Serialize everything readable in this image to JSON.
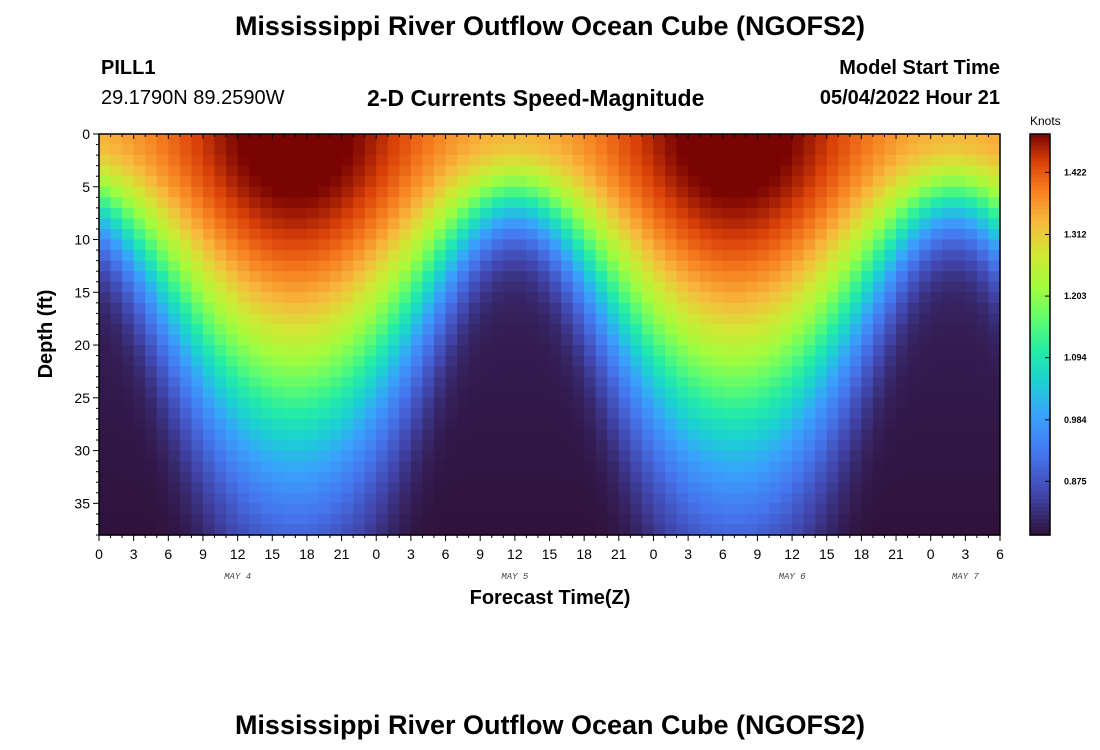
{
  "header": {
    "title": "Mississippi River Outflow Ocean Cube (NGOFS2)",
    "station_name": "PILL1",
    "station_coords": "29.1790N  89.2590W",
    "subtitle": "2-D Currents Speed-Magnitude",
    "model_start_label": "Model Start Time",
    "model_start_value": "05/04/2022 Hour 21"
  },
  "footer": {
    "title": "Mississippi River Outflow Ocean Cube (NGOFS2)"
  },
  "chart_data": {
    "type": "heatmap",
    "xlabel": "Forecast Time(Z)",
    "ylabel": "Depth (ft)",
    "x_tick_labels": [
      "0",
      "3",
      "6",
      "9",
      "12",
      "15",
      "18",
      "21",
      "0",
      "3",
      "6",
      "9",
      "12",
      "15",
      "18",
      "21",
      "0",
      "3",
      "6",
      "9",
      "12",
      "15",
      "18",
      "21",
      "0",
      "3",
      "6"
    ],
    "day_labels": [
      {
        "label": "MAY 4",
        "tick_index": 4
      },
      {
        "label": "MAY 5",
        "tick_index": 12
      },
      {
        "label": "MAY 6",
        "tick_index": 20
      },
      {
        "label": "MAY 7",
        "tick_index": 25
      }
    ],
    "xlim_hours": [
      0,
      78
    ],
    "ylim_ft": [
      0,
      38
    ],
    "y_ticks": [
      0,
      5,
      10,
      15,
      20,
      25,
      30,
      35
    ],
    "colorbar": {
      "unit": "Knots",
      "ticks": [
        "1.422",
        "1.312",
        "1.203",
        "1.094",
        "0.984",
        "0.875"
      ],
      "tick_values": [
        1.422,
        1.312,
        1.203,
        1.094,
        0.984,
        0.875
      ],
      "range": [
        0.78,
        1.49
      ]
    },
    "field_description_points": {
      "surface_peaks_hours": [
        17,
        55
      ],
      "surface_troughs_hours": [
        40,
        72
      ],
      "max_speed_knots": 1.49,
      "min_speed_knots": 0.78
    }
  }
}
